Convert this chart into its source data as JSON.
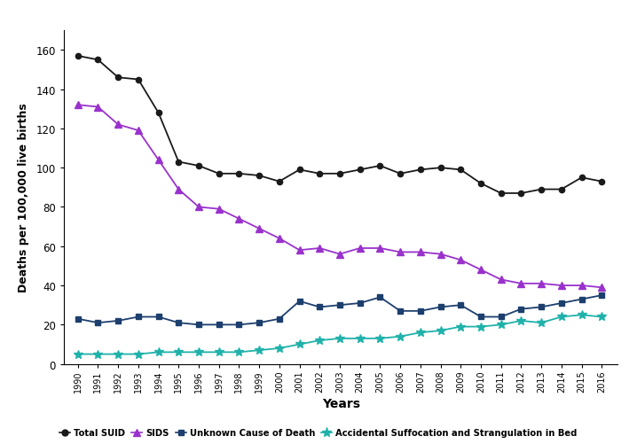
{
  "years": [
    1990,
    1991,
    1992,
    1993,
    1994,
    1995,
    1996,
    1997,
    1998,
    1999,
    2000,
    2001,
    2002,
    2003,
    2004,
    2005,
    2006,
    2007,
    2008,
    2009,
    2010,
    2011,
    2012,
    2013,
    2014,
    2015,
    2016
  ],
  "total_suid": [
    157,
    155,
    146,
    145,
    128,
    103,
    101,
    97,
    97,
    96,
    93,
    99,
    97,
    97,
    99,
    101,
    97,
    99,
    100,
    99,
    92,
    87,
    87,
    89,
    89,
    95,
    93
  ],
  "sids": [
    132,
    131,
    122,
    119,
    104,
    89,
    80,
    79,
    74,
    69,
    64,
    58,
    59,
    56,
    59,
    59,
    57,
    57,
    56,
    53,
    48,
    43,
    41,
    41,
    40,
    40,
    39
  ],
  "unknown_cause": [
    23,
    21,
    22,
    24,
    24,
    21,
    20,
    20,
    20,
    21,
    23,
    32,
    29,
    30,
    31,
    34,
    27,
    27,
    29,
    30,
    24,
    24,
    28,
    29,
    31,
    33,
    35
  ],
  "accidental_suffocation": [
    5,
    5,
    5,
    5,
    6,
    6,
    6,
    6,
    6,
    7,
    8,
    10,
    12,
    13,
    13,
    13,
    14,
    16,
    17,
    19,
    19,
    20,
    22,
    21,
    24,
    25,
    24
  ],
  "colors": {
    "total_suid": "#1a1a1a",
    "sids": "#9932CC",
    "unknown_cause": "#1C3F6E",
    "accidental_suffocation": "#20B2AA"
  },
  "ylabel": "Deaths per 100,000 live births",
  "xlabel": "Years",
  "ylim": [
    0,
    170
  ],
  "yticks": [
    0,
    20,
    40,
    60,
    80,
    100,
    120,
    140,
    160
  ],
  "legend_labels": [
    "Total SUID",
    "SIDS",
    "Unknown Cause of Death",
    "Accidental Suffocation and Strangulation in Bed"
  ]
}
